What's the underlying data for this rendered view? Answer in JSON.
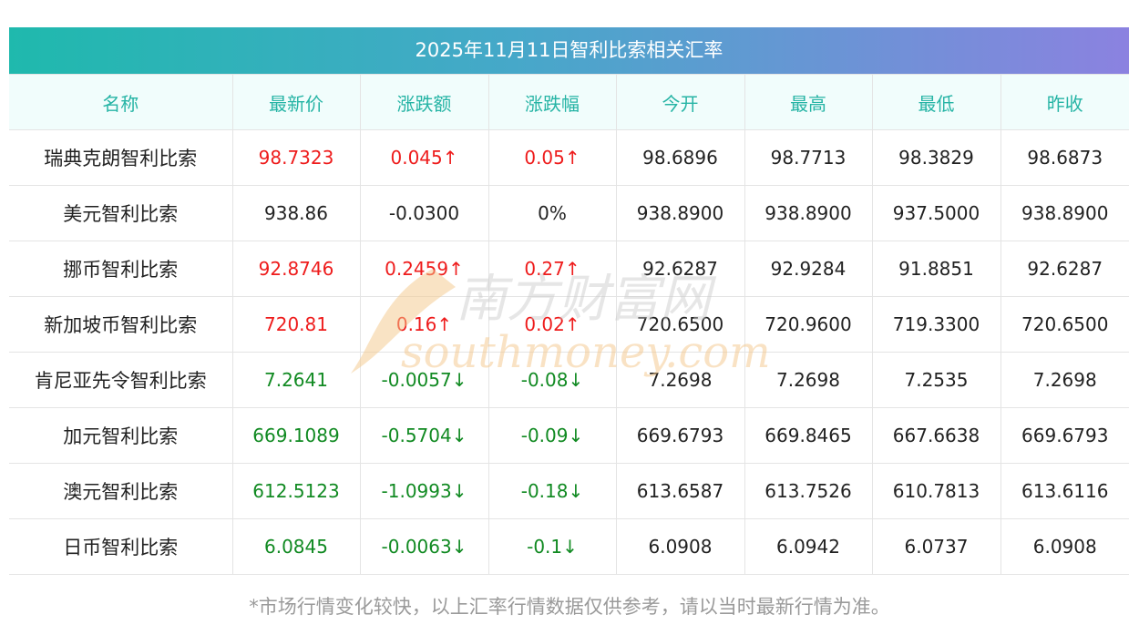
{
  "title": "2025年11月11日智利比索相关汇率",
  "columns": [
    "名称",
    "最新价",
    "涨跌额",
    "涨跌幅",
    "今开",
    "最高",
    "最低",
    "昨收"
  ],
  "rows": [
    {
      "name": "瑞典克朗智利比索",
      "latest": "98.7323",
      "change": "0.045↑",
      "pct": "0.05↑",
      "open": "98.6896",
      "high": "98.7713",
      "low": "98.3829",
      "prev": "98.6873",
      "trend": "up"
    },
    {
      "name": "美元智利比索",
      "latest": "938.86",
      "change": "-0.0300",
      "pct": "0%",
      "open": "938.8900",
      "high": "938.8900",
      "low": "937.5000",
      "prev": "938.8900",
      "trend": "flat"
    },
    {
      "name": "挪币智利比索",
      "latest": "92.8746",
      "change": "0.2459↑",
      "pct": "0.27↑",
      "open": "92.6287",
      "high": "92.9284",
      "low": "91.8851",
      "prev": "92.6287",
      "trend": "up"
    },
    {
      "name": "新加坡币智利比索",
      "latest": "720.81",
      "change": "0.16↑",
      "pct": "0.02↑",
      "open": "720.6500",
      "high": "720.9600",
      "low": "719.3300",
      "prev": "720.6500",
      "trend": "up"
    },
    {
      "name": "肯尼亚先令智利比索",
      "latest": "7.2641",
      "change": "-0.0057↓",
      "pct": "-0.08↓",
      "open": "7.2698",
      "high": "7.2698",
      "low": "7.2535",
      "prev": "7.2698",
      "trend": "down"
    },
    {
      "name": "加元智利比索",
      "latest": "669.1089",
      "change": "-0.5704↓",
      "pct": "-0.09↓",
      "open": "669.6793",
      "high": "669.8465",
      "low": "667.6638",
      "prev": "669.6793",
      "trend": "down"
    },
    {
      "name": "澳元智利比索",
      "latest": "612.5123",
      "change": "-1.0993↓",
      "pct": "-0.18↓",
      "open": "613.6587",
      "high": "613.7526",
      "low": "610.7813",
      "prev": "613.6116",
      "trend": "down"
    },
    {
      "name": "日币智利比索",
      "latest": "6.0845",
      "change": "-0.0063↓",
      "pct": "-0.1↓",
      "open": "6.0908",
      "high": "6.0942",
      "low": "6.0737",
      "prev": "6.0908",
      "trend": "down"
    }
  ],
  "footnote": "*市场行情变化较快，以上汇率行情数据仅供参考，请以当时最新行情为准。",
  "watermark": {
    "cn": "南方财富网",
    "en": "southmoney.com"
  },
  "colors": {
    "up": "#ee1c1c",
    "down": "#118a22",
    "header": "#26b4a5"
  }
}
